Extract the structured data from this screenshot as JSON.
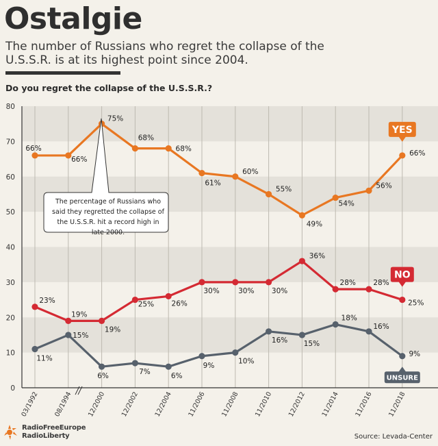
{
  "header": {
    "title": "Ostalgie",
    "subtitle": "The number of Russians who regret the collapse of the U.S.S.R. is at its highest point since 2004.",
    "question": "Do you regret the collapse of the U.S.S.R.?"
  },
  "annotation": {
    "text": "The percentage of Russians who said they regretted the collapse of the U.S.S.R. hit a record high in late 2000."
  },
  "footer": {
    "logo_line1": "RadioFreeEurope",
    "logo_line2": "RadioLiberty",
    "source": "Source: Levada-Center"
  },
  "colors": {
    "yes": "#e87722",
    "no": "#d42a33",
    "unsure": "#57616c",
    "band": "#e4e1da",
    "background": "#f4f1ea"
  },
  "chart_data": {
    "type": "line",
    "categories": [
      "03/1992",
      "08/1994",
      "12/2000",
      "12/2002",
      "12/2004",
      "11/2006",
      "11/2008",
      "11/2010",
      "12/2012",
      "11/2014",
      "11/2016",
      "11/2018"
    ],
    "ylim": [
      0,
      80
    ],
    "yticks": [
      0,
      10,
      20,
      30,
      40,
      50,
      60,
      70,
      80
    ],
    "grid": true,
    "series": [
      {
        "name": "YES",
        "color": "#e87722",
        "values": [
          66,
          66,
          75,
          68,
          68,
          61,
          60,
          55,
          49,
          54,
          56,
          66
        ],
        "labels": [
          "66%",
          "66%",
          "75%",
          "68%",
          "68%",
          "61%",
          "60%",
          "55%",
          "49%",
          "54%",
          "56%",
          "66%"
        ]
      },
      {
        "name": "NO",
        "color": "#d42a33",
        "values": [
          23,
          19,
          19,
          25,
          26,
          30,
          30,
          30,
          36,
          28,
          28,
          25
        ],
        "labels": [
          "23%",
          "19%",
          "19%",
          "25%",
          "26%",
          "30%",
          "30%",
          "30%",
          "36%",
          "28%",
          "28%",
          "25%"
        ]
      },
      {
        "name": "UNSURE",
        "color": "#57616c",
        "values": [
          11,
          15,
          6,
          7,
          6,
          9,
          10,
          16,
          15,
          18,
          16,
          9
        ],
        "labels": [
          "11%",
          "15%",
          "6%",
          "7%",
          "6%",
          "9%",
          "10%",
          "16%",
          "15%",
          "18%",
          "16%",
          "9%"
        ]
      }
    ]
  }
}
